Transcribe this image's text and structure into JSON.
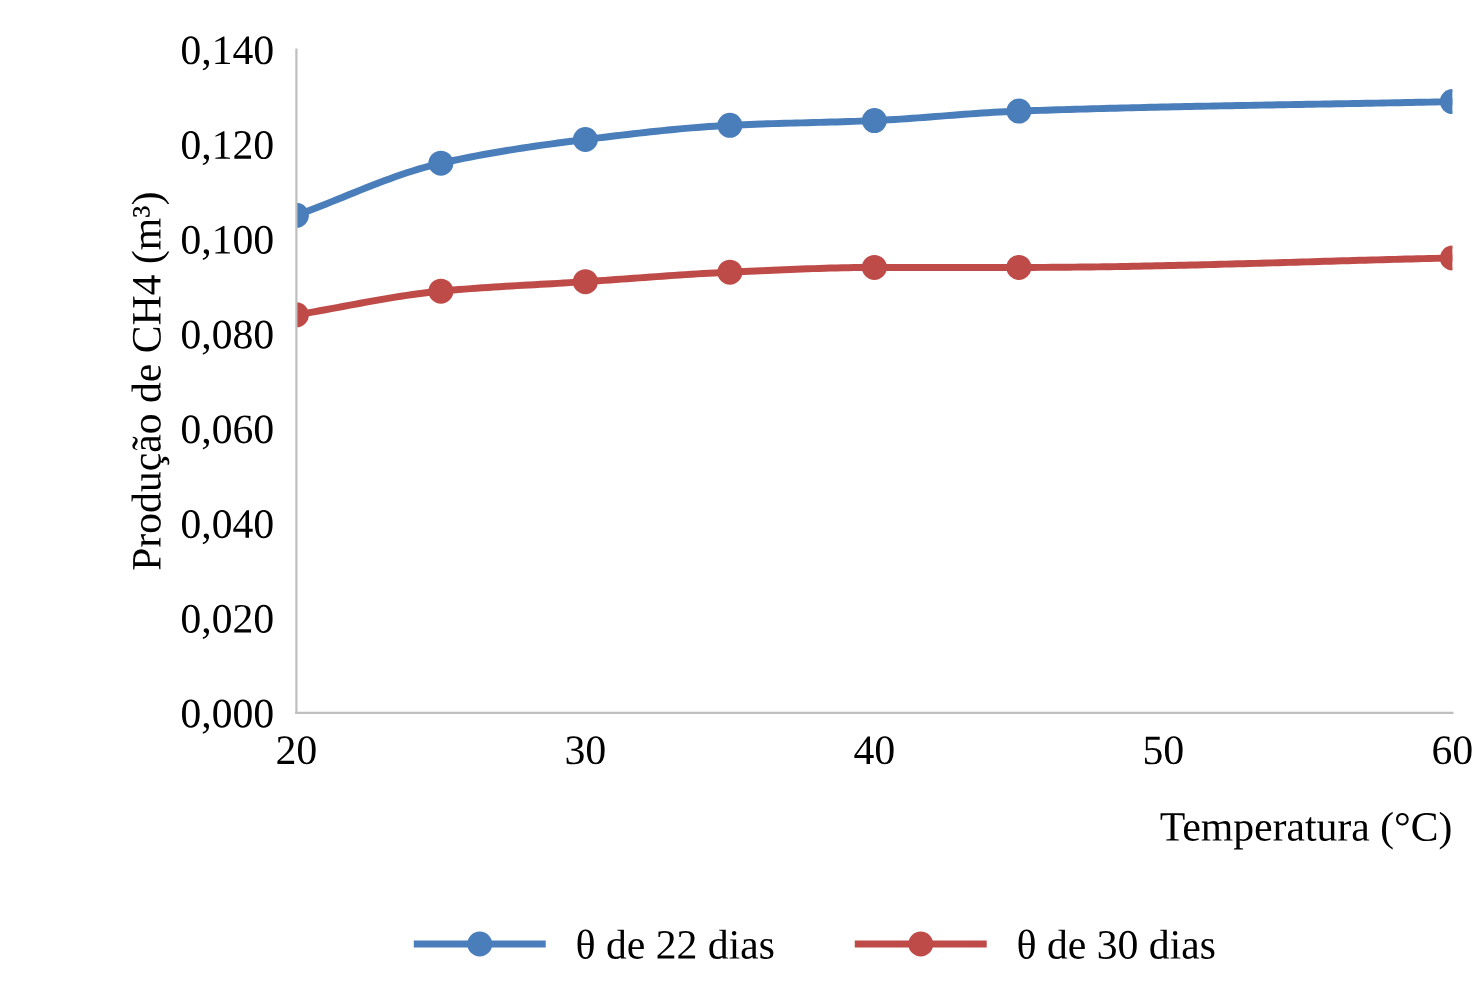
{
  "chart_data": {
    "type": "line",
    "xlabel": "Temperatura (°C)",
    "ylabel": "Produção de CH4 (m³)",
    "x": [
      20,
      25,
      30,
      35,
      40,
      45,
      60
    ],
    "series": [
      {
        "name": "θ de 22 dias",
        "color": "#4a7ebb",
        "values": [
          0.105,
          0.116,
          0.121,
          0.124,
          0.125,
          0.127,
          0.129
        ]
      },
      {
        "name": "θ de 30 dias",
        "color": "#be4b48",
        "values": [
          0.084,
          0.089,
          0.091,
          0.093,
          0.094,
          0.094,
          0.096
        ]
      }
    ],
    "xlim": [
      20,
      60
    ],
    "xticks": [
      20,
      30,
      40,
      50,
      60
    ],
    "ylim": [
      0,
      0.14
    ],
    "yticks": [
      {
        "value": 0,
        "label": "0,000"
      },
      {
        "value": 0.02,
        "label": "0,020"
      },
      {
        "value": 0.04,
        "label": "0,040"
      },
      {
        "value": 0.06,
        "label": "0,060"
      },
      {
        "value": 0.08,
        "label": "0,080"
      },
      {
        "value": 0.1,
        "label": "0,100"
      },
      {
        "value": 0.12,
        "label": "0,120"
      },
      {
        "value": 0.14,
        "label": "0,140"
      }
    ],
    "grid": false,
    "legend": "bottom",
    "marker": "circle",
    "line_style": "solid"
  }
}
